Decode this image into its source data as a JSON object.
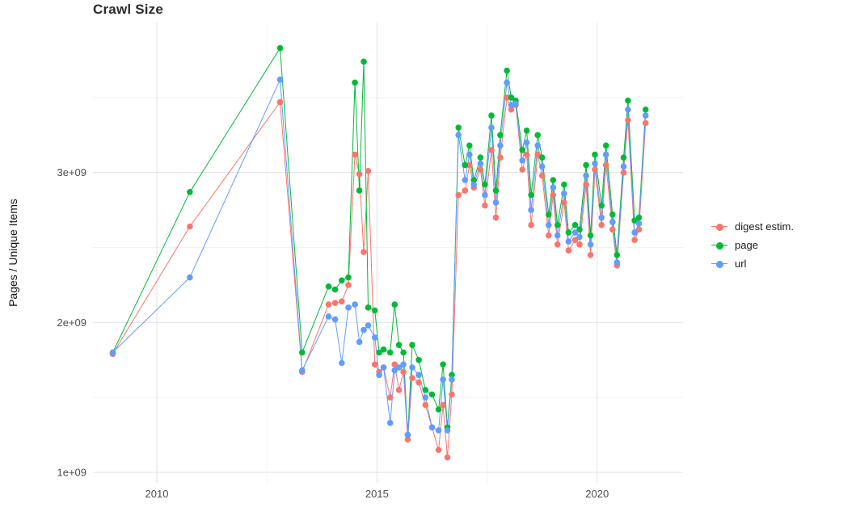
{
  "figure": {
    "title": "Crawl Size",
    "ylabel": "Pages / Unique Items"
  },
  "chart_data": {
    "type": "line",
    "title": "Crawl Size",
    "xlabel": "",
    "ylabel": "Pages / Unique Items",
    "grid": true,
    "legend_position": "right",
    "xlim": [
      2008.55,
      2021.95
    ],
    "ylim": [
      930000000.0,
      4000000000.0
    ],
    "x_ticks": {
      "values": [
        2010,
        2015,
        2020
      ],
      "labels": [
        "2010",
        "2015",
        "2020"
      ]
    },
    "y_ticks": {
      "values": [
        1000000000.0,
        2000000000.0,
        3000000000.0
      ],
      "labels": [
        "1e+09",
        "2e+09",
        "3e+09"
      ]
    },
    "x_minor": [
      2012.5,
      2017.5
    ],
    "y_minor": [
      1500000000.0,
      2500000000.0,
      3500000000.0
    ],
    "x": [
      2009.0,
      2010.75,
      2012.8,
      2013.3,
      2013.9,
      2014.05,
      2014.2,
      2014.35,
      2014.5,
      2014.6,
      2014.7,
      2014.8,
      2014.95,
      2015.05,
      2015.15,
      2015.3,
      2015.4,
      2015.5,
      2015.6,
      2015.7,
      2015.8,
      2015.95,
      2016.1,
      2016.25,
      2016.4,
      2016.5,
      2016.6,
      2016.7,
      2016.85,
      2017.0,
      2017.1,
      2017.2,
      2017.35,
      2017.45,
      2017.6,
      2017.7,
      2017.8,
      2017.95,
      2018.05,
      2018.15,
      2018.3,
      2018.4,
      2018.5,
      2018.65,
      2018.75,
      2018.9,
      2019.0,
      2019.1,
      2019.25,
      2019.35,
      2019.5,
      2019.6,
      2019.75,
      2019.85,
      2019.95,
      2020.1,
      2020.2,
      2020.35,
      2020.45,
      2020.6,
      2020.7,
      2020.85,
      2020.95,
      2021.1
    ],
    "series": [
      {
        "name": "digest estim.",
        "color": "#F8766D",
        "values": [
          1790000000.0,
          2640000000.0,
          3470000000.0,
          1670000000.0,
          2120000000.0,
          2130000000.0,
          2140000000.0,
          2250000000.0,
          3120000000.0,
          2990000000.0,
          2470000000.0,
          3010000000.0,
          1720000000.0,
          1670000000.0,
          1700000000.0,
          1500000000.0,
          1720000000.0,
          1550000000.0,
          1670000000.0,
          1220000000.0,
          1630000000.0,
          1600000000.0,
          1450000000.0,
          1300000000.0,
          1150000000.0,
          1450000000.0,
          1100000000.0,
          1520000000.0,
          2850000000.0,
          2880000000.0,
          3050000000.0,
          2900000000.0,
          3020000000.0,
          2780000000.0,
          3150000000.0,
          2700000000.0,
          3100000000.0,
          3500000000.0,
          3420000000.0,
          3450000000.0,
          3020000000.0,
          3120000000.0,
          2650000000.0,
          3120000000.0,
          2980000000.0,
          2580000000.0,
          2850000000.0,
          2520000000.0,
          2800000000.0,
          2480000000.0,
          2550000000.0,
          2520000000.0,
          2920000000.0,
          2450000000.0,
          3020000000.0,
          2650000000.0,
          3050000000.0,
          2620000000.0,
          2380000000.0,
          3000000000.0,
          3350000000.0,
          2550000000.0,
          2620000000.0,
          3330000000.0
        ]
      },
      {
        "name": "page",
        "color": "#00BA38",
        "values": [
          1800000000.0,
          2870000000.0,
          3830000000.0,
          1800000000.0,
          2240000000.0,
          2220000000.0,
          2280000000.0,
          2300000000.0,
          3600000000.0,
          2880000000.0,
          3740000000.0,
          2100000000.0,
          2080000000.0,
          1800000000.0,
          1820000000.0,
          1800000000.0,
          2120000000.0,
          1850000000.0,
          1800000000.0,
          1250000000.0,
          1850000000.0,
          1750000000.0,
          1550000000.0,
          1520000000.0,
          1420000000.0,
          1720000000.0,
          1300000000.0,
          1650000000.0,
          3300000000.0,
          3050000000.0,
          3180000000.0,
          2950000000.0,
          3100000000.0,
          2920000000.0,
          3380000000.0,
          2880000000.0,
          3250000000.0,
          3680000000.0,
          3500000000.0,
          3480000000.0,
          3150000000.0,
          3280000000.0,
          2850000000.0,
          3250000000.0,
          3100000000.0,
          2720000000.0,
          2950000000.0,
          2650000000.0,
          2920000000.0,
          2600000000.0,
          2650000000.0,
          2620000000.0,
          3050000000.0,
          2580000000.0,
          3120000000.0,
          2780000000.0,
          3180000000.0,
          2720000000.0,
          2450000000.0,
          3100000000.0,
          3480000000.0,
          2680000000.0,
          2700000000.0,
          3420000000.0
        ]
      },
      {
        "name": "url",
        "color": "#619CFF",
        "values": [
          1800000000.0,
          2300000000.0,
          3620000000.0,
          1680000000.0,
          2040000000.0,
          2020000000.0,
          1730000000.0,
          2100000000.0,
          2120000000.0,
          1870000000.0,
          1950000000.0,
          1980000000.0,
          1900000000.0,
          1650000000.0,
          1700000000.0,
          1330000000.0,
          1680000000.0,
          1700000000.0,
          1720000000.0,
          1250000000.0,
          1700000000.0,
          1650000000.0,
          1500000000.0,
          1300000000.0,
          1280000000.0,
          1620000000.0,
          1280000000.0,
          1620000000.0,
          3250000000.0,
          2950000000.0,
          3120000000.0,
          2920000000.0,
          3060000000.0,
          2850000000.0,
          3300000000.0,
          2800000000.0,
          3180000000.0,
          3600000000.0,
          3450000000.0,
          3460000000.0,
          3080000000.0,
          3200000000.0,
          2750000000.0,
          3180000000.0,
          3040000000.0,
          2650000000.0,
          2900000000.0,
          2580000000.0,
          2860000000.0,
          2540000000.0,
          2600000000.0,
          2570000000.0,
          2980000000.0,
          2520000000.0,
          3060000000.0,
          2700000000.0,
          3120000000.0,
          2670000000.0,
          2400000000.0,
          3040000000.0,
          3420000000.0,
          2600000000.0,
          2660000000.0,
          3380000000.0
        ]
      }
    ]
  }
}
